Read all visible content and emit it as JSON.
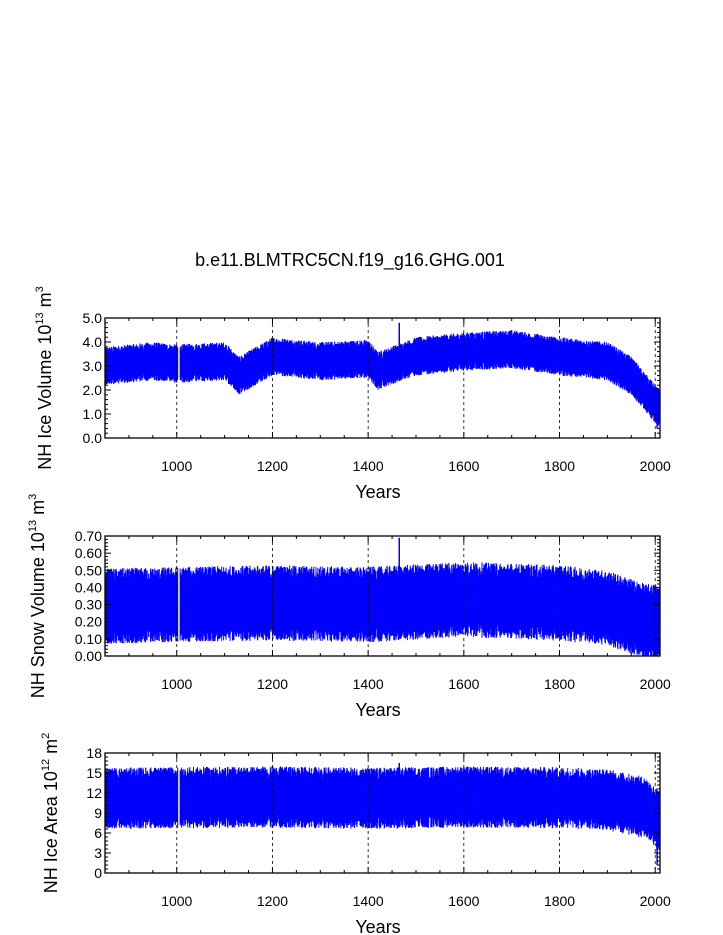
{
  "figure": {
    "title": "b.e11.BLMTRC5CN.f19_g16.GHG.001",
    "series_color": "#0000ff"
  },
  "chart_data": [
    {
      "type": "line",
      "name": "ice-volume",
      "title": "",
      "xlabel": "Years",
      "ylabel": {
        "prefix": "NH Ice Volume 10",
        "exp": "13",
        "unit": " m",
        "unit_exp": "3"
      },
      "xlim": [
        850,
        2010
      ],
      "ylim": [
        0,
        5
      ],
      "x_ticks": [
        1000,
        1200,
        1400,
        1600,
        1800,
        2000
      ],
      "x_tick_labels": [
        "1000",
        "1200",
        "1400",
        "1600",
        "1800",
        "2000"
      ],
      "x_grid": [
        1000,
        1200,
        1400,
        1600,
        1800,
        2000
      ],
      "y_ticks": [
        0,
        1,
        2,
        3,
        4,
        5
      ],
      "y_tick_labels": [
        "0.0",
        "1.0",
        "2.0",
        "3.0",
        "4.0",
        "5.0"
      ],
      "y_minor_step": 0.2,
      "gap": [
        1002,
        1007
      ],
      "trend": {
        "x": [
          850,
          950,
          1000,
          1100,
          1130,
          1200,
          1300,
          1400,
          1420,
          1500,
          1600,
          1700,
          1800,
          1900,
          1950,
          2005
        ],
        "y": [
          3.0,
          3.2,
          3.1,
          3.2,
          2.6,
          3.4,
          3.2,
          3.3,
          2.8,
          3.4,
          3.6,
          3.7,
          3.4,
          3.2,
          2.6,
          1.3
        ]
      },
      "amplitude": 0.8,
      "extremes": {
        "max": 4.8,
        "min": 0.4
      }
    },
    {
      "type": "line",
      "name": "snow-volume",
      "title": "",
      "xlabel": "Years",
      "ylabel": {
        "prefix": "NH Snow Volume 10",
        "exp": "13",
        "unit": " m",
        "unit_exp": "3"
      },
      "xlim": [
        850,
        2010
      ],
      "ylim": [
        0,
        0.7
      ],
      "x_ticks": [
        1000,
        1200,
        1400,
        1600,
        1800,
        2000
      ],
      "x_tick_labels": [
        "1000",
        "1200",
        "1400",
        "1600",
        "1800",
        "2000"
      ],
      "x_grid": [
        1000,
        1200,
        1400,
        1600,
        1800,
        2000
      ],
      "y_ticks": [
        0,
        0.1,
        0.2,
        0.3,
        0.4,
        0.5,
        0.6,
        0.7
      ],
      "y_tick_labels": [
        "0.00",
        "0.10",
        "0.20",
        "0.30",
        "0.40",
        "0.50",
        "0.60",
        "0.70"
      ],
      "y_minor_step": 0.02,
      "gap": [
        1002,
        1007
      ],
      "trend": {
        "x": [
          850,
          1000,
          1200,
          1400,
          1600,
          1800,
          1900,
          1980,
          2005
        ],
        "y": [
          0.29,
          0.3,
          0.31,
          0.3,
          0.33,
          0.31,
          0.28,
          0.2,
          0.2
        ]
      },
      "amplitude": 0.22,
      "extremes": {
        "max": 0.69,
        "min": 0.0
      }
    },
    {
      "type": "line",
      "name": "ice-area",
      "title": "",
      "xlabel": "Years",
      "ylabel": {
        "prefix": "NH Ice Area 10",
        "exp": "12",
        "unit": " m",
        "unit_exp": "2"
      },
      "xlim": [
        850,
        2010
      ],
      "ylim": [
        0,
        18
      ],
      "x_ticks": [
        1000,
        1200,
        1400,
        1600,
        1800,
        2000
      ],
      "x_tick_labels": [
        "1000",
        "1200",
        "1400",
        "1600",
        "1800",
        "2000"
      ],
      "x_grid": [
        1000,
        1200,
        1400,
        1600,
        1800,
        2000
      ],
      "y_ticks": [
        0,
        3,
        6,
        9,
        12,
        15,
        18
      ],
      "y_tick_labels": [
        "0",
        "3",
        "6",
        "9",
        "12",
        "15",
        "18"
      ],
      "y_minor_step": 0.6,
      "gap": [
        1002,
        1007
      ],
      "trend": {
        "x": [
          850,
          1000,
          1200,
          1400,
          1600,
          1800,
          1900,
          1980,
          2005
        ],
        "y": [
          11.2,
          11.3,
          11.4,
          11.2,
          11.4,
          11.3,
          11.0,
          9.8,
          8.0
        ]
      },
      "amplitude": 4.6,
      "extremes": {
        "max": 16.5,
        "min": 1.2
      }
    }
  ]
}
